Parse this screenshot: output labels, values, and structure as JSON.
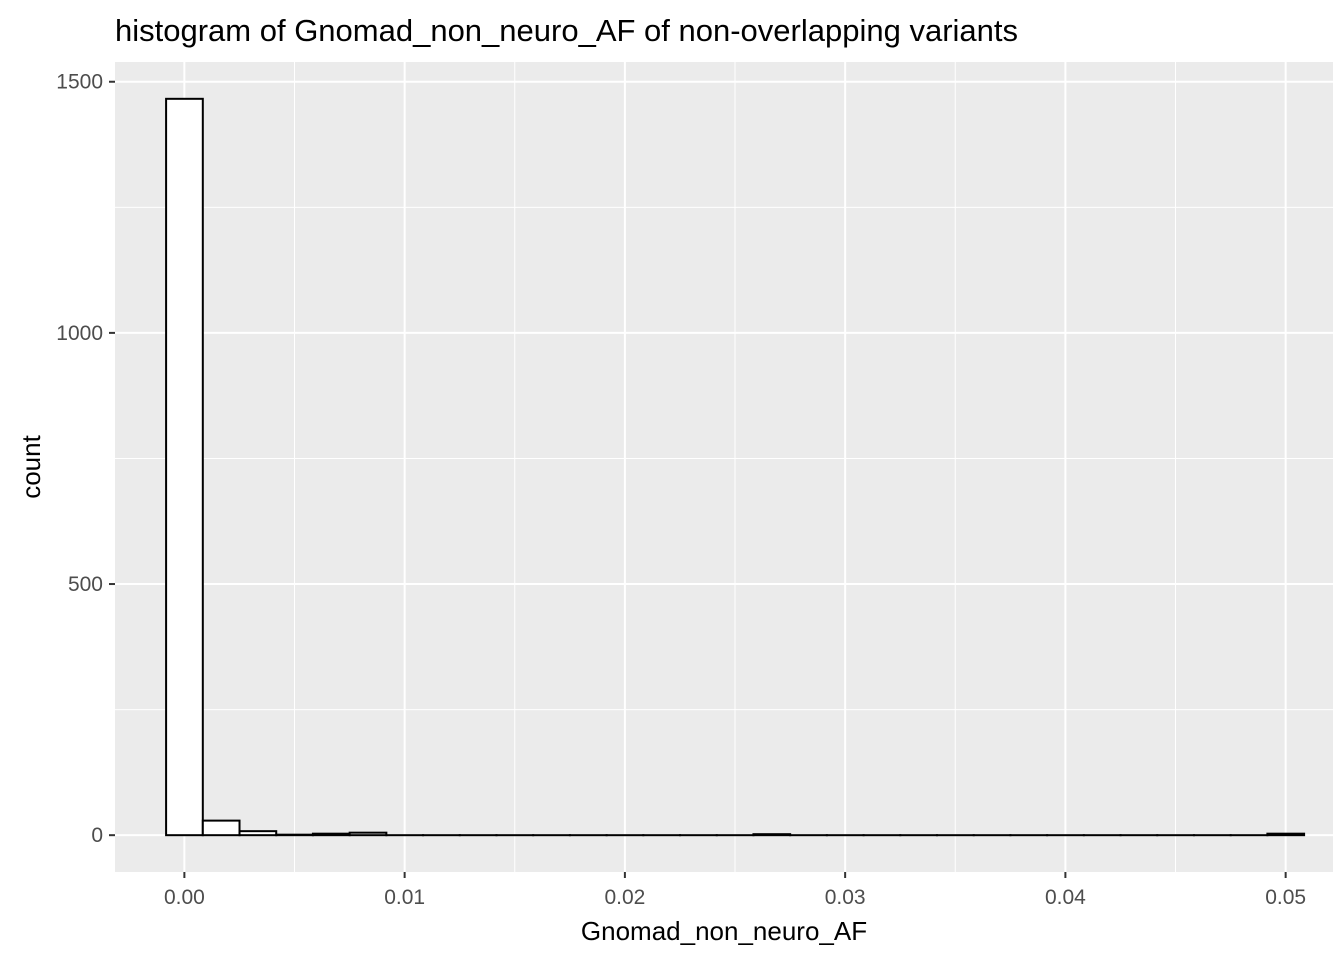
{
  "chart_data": {
    "type": "bar",
    "title": "histogram of Gnomad_non_neuro_AF of non-overlapping variants",
    "xlabel": "Gnomad_non_neuro_AF",
    "ylabel": "count",
    "xlim": [
      -0.00315,
      0.05215
    ],
    "ylim": [
      -73.3,
      1539.3
    ],
    "x_ticks": [
      {
        "value": 0.0,
        "label": "0.00"
      },
      {
        "value": 0.01,
        "label": "0.01"
      },
      {
        "value": 0.02,
        "label": "0.02"
      },
      {
        "value": 0.03,
        "label": "0.03"
      },
      {
        "value": 0.04,
        "label": "0.04"
      },
      {
        "value": 0.05,
        "label": "0.05"
      }
    ],
    "x_minor_breaks": [
      0.005,
      0.015,
      0.025,
      0.035,
      0.045
    ],
    "y_ticks": [
      {
        "value": 0,
        "label": "0"
      },
      {
        "value": 500,
        "label": "500"
      },
      {
        "value": 1000,
        "label": "1000"
      },
      {
        "value": 1500,
        "label": "1500"
      }
    ],
    "y_minor_breaks": [
      250,
      750,
      1250
    ],
    "bin_width": 0.0016667,
    "bin_start": -0.00083,
    "counts": [
      1466,
      29,
      8,
      1,
      3,
      5,
      0,
      0,
      0,
      0,
      0,
      0,
      0,
      0,
      0,
      0,
      2,
      0,
      0,
      0,
      0,
      0,
      0,
      0,
      0,
      0,
      0,
      0,
      0,
      0,
      3
    ],
    "bar_fill": "#ffffff",
    "bar_stroke": "#000000",
    "panel_background": "#ebebeb",
    "grid_color": "#ffffff",
    "grid": true,
    "legend": "none"
  }
}
